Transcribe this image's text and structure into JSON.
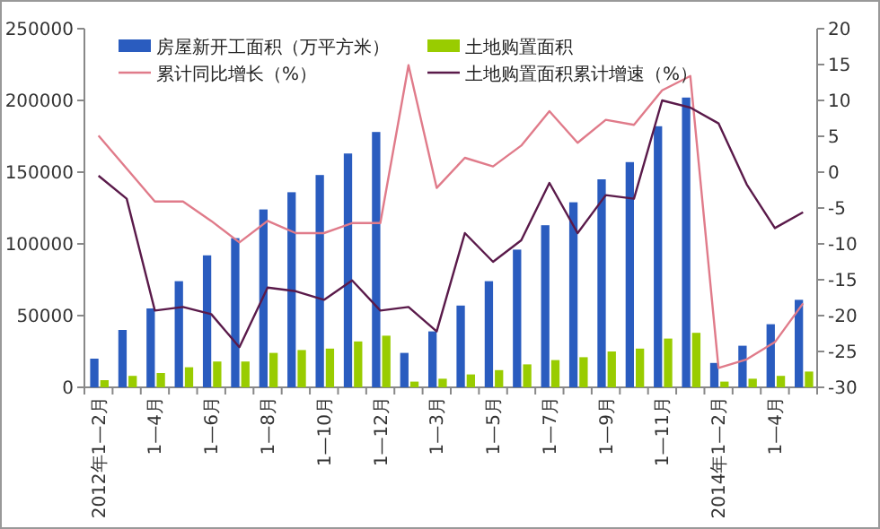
{
  "chart_data": {
    "type": "bar",
    "categories": [
      "2012年1—2月",
      null,
      "1—4月",
      null,
      "1—6月",
      null,
      "1—8月",
      null,
      "1—10月",
      null,
      "1—12月",
      null,
      "1—3月",
      null,
      "1—5月",
      null,
      "1—7月",
      null,
      "1—9月",
      null,
      "1—11月",
      null,
      "2014年1—2月",
      null,
      "1—4月",
      null
    ],
    "series": [
      {
        "name": "房屋新开工面积（万平方米）",
        "color": "#2a5cbf",
        "values": [
          20000,
          40000,
          55000,
          74000,
          92000,
          104000,
          124000,
          136000,
          148000,
          163000,
          178000,
          24000,
          39000,
          57000,
          74000,
          96000,
          113000,
          129000,
          145000,
          157000,
          182000,
          202000,
          17000,
          29000,
          44000,
          61000
        ]
      },
      {
        "name": "土地购置面积",
        "color": "#99cc00",
        "values": [
          5000,
          8000,
          10000,
          14000,
          18000,
          18000,
          24000,
          26000,
          27000,
          32000,
          36000,
          4000,
          6000,
          9000,
          12000,
          16000,
          19000,
          21000,
          25000,
          27000,
          34000,
          38000,
          4000,
          6000,
          8000,
          11000
        ]
      },
      {
        "name": "累计同比增长（%）",
        "type": "line",
        "axis": "y2",
        "color": "#e07b8a",
        "values": [
          5.1,
          0.5,
          -4.1,
          -4.1,
          -6.8,
          -9.8,
          -6.8,
          -8.5,
          -8.5,
          -7.1,
          -7.1,
          14.9,
          -2.2,
          2.0,
          0.8,
          3.7,
          8.5,
          4.1,
          7.3,
          6.6,
          11.4,
          13.4,
          -27.3,
          -26.1,
          -23.7,
          -18.3
        ]
      },
      {
        "name": "土地购置面积累计增速（%）",
        "type": "line",
        "axis": "y2",
        "color": "#5a1a4a",
        "values": [
          -0.5,
          -3.7,
          -19.3,
          -18.8,
          -19.8,
          -24.4,
          -16.1,
          -16.6,
          -17.8,
          -15.1,
          -19.3,
          -18.8,
          -22.2,
          -8.5,
          -12.5,
          -9.5,
          -1.5,
          -8.5,
          -3.2,
          -3.7,
          10.0,
          9.0,
          6.8,
          -1.7,
          -7.8,
          -5.6
        ]
      }
    ],
    "ylim": [
      0,
      250000
    ],
    "yticks": [
      0,
      50000,
      100000,
      150000,
      200000,
      250000
    ],
    "y2lim": [
      -30,
      20
    ],
    "y2ticks": [
      -30,
      -25,
      -20,
      -15,
      -10,
      -5,
      0,
      5,
      10,
      15,
      20
    ],
    "legend": "top",
    "grid": false,
    "marker": "none",
    "line_style": "solid"
  }
}
